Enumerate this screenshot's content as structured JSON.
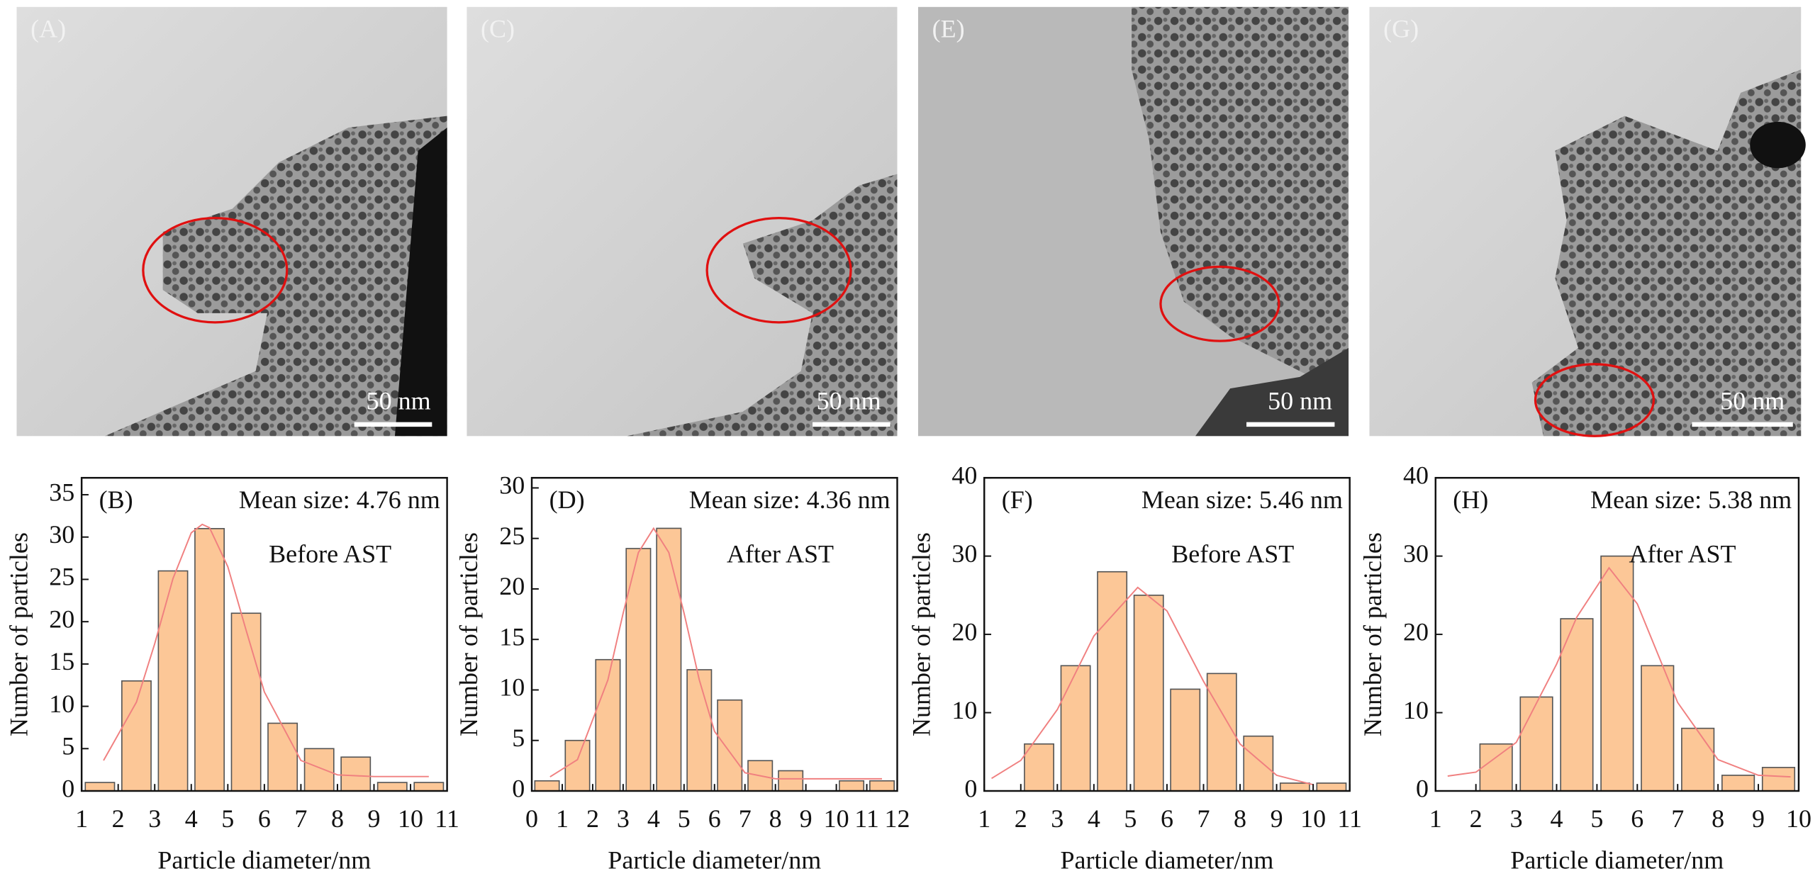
{
  "images": [
    {
      "label": "(A)",
      "scale_bar": "50 nm"
    },
    {
      "label": "(C)",
      "scale_bar": "50 nm"
    },
    {
      "label": "(E)",
      "scale_bar": "50 nm"
    },
    {
      "label": "(G)",
      "scale_bar": "50 nm"
    }
  ],
  "chart_data": [
    {
      "type": "histogram",
      "panel_label": "(B)",
      "annotation": "Mean size: 4.76 nm",
      "note": "Before AST",
      "x_label": "Particle diameter/nm",
      "y_label": "Number of particles",
      "color": "#fcc797",
      "edge_color": "#555555",
      "bins": [
        1,
        2,
        3,
        4,
        5,
        6,
        7,
        8,
        9,
        10,
        11
      ],
      "values": [
        1,
        13,
        26,
        31,
        21,
        8,
        5,
        4,
        1,
        1
      ],
      "xlim": [
        1,
        11
      ],
      "xticks": [
        1,
        2,
        3,
        4,
        5,
        6,
        7,
        8,
        9,
        10,
        11
      ],
      "ylim": [
        0,
        37
      ],
      "yticks": [
        0,
        5,
        10,
        15,
        20,
        25,
        30,
        35
      ],
      "fit": {
        "color": "#f08080",
        "x": [
          1.6,
          2.5,
          3,
          3.5,
          4,
          4.3,
          4.5,
          5,
          5.5,
          6,
          7,
          8,
          9,
          10.5
        ],
        "values": [
          3.6,
          10.5,
          17.4,
          25.1,
          30.5,
          31.5,
          31.1,
          26.5,
          19.0,
          11.7,
          3.6,
          1.9,
          1.7,
          1.7
        ]
      }
    },
    {
      "type": "histogram",
      "panel_label": "(D)",
      "annotation": "Mean size: 4.36 nm",
      "note": "After AST",
      "x_label": "Particle diameter/nm",
      "y_label": "Number of particles",
      "color": "#fcc797",
      "edge_color": "#555555",
      "bins": [
        0,
        1,
        2,
        3,
        4,
        5,
        6,
        7,
        8,
        9,
        10,
        11,
        12
      ],
      "values": [
        1,
        5,
        13,
        24,
        26,
        12,
        9,
        3,
        2,
        0,
        1,
        1
      ],
      "xlim": [
        0,
        12
      ],
      "xticks": [
        0,
        1,
        2,
        3,
        4,
        5,
        6,
        7,
        8,
        9,
        10,
        11,
        12
      ],
      "ylim": [
        0,
        31
      ],
      "yticks": [
        0,
        5,
        10,
        15,
        20,
        25,
        30
      ],
      "fit": {
        "color": "#f08080",
        "x": [
          0.6,
          1.5,
          2.5,
          3,
          3.5,
          4,
          4.5,
          5,
          5.5,
          6,
          7,
          8,
          11.5
        ],
        "values": [
          1.4,
          3.1,
          11.0,
          17.6,
          23.6,
          26.0,
          23.6,
          17.6,
          11.0,
          5.9,
          1.8,
          1.2,
          1.2
        ]
      }
    },
    {
      "type": "histogram",
      "panel_label": "(F)",
      "annotation": "Mean size: 5.46 nm",
      "note": "Before AST",
      "x_label": "Particle diameter/nm",
      "y_label": "Number of particles",
      "color": "#fcc797",
      "edge_color": "#555555",
      "bins": [
        2,
        3,
        4,
        5,
        6,
        7,
        8,
        9,
        10,
        11
      ],
      "values": [
        6,
        16,
        28,
        25,
        13,
        15,
        7,
        1,
        1
      ],
      "xlim": [
        1,
        11
      ],
      "xticks": [
        1,
        2,
        3,
        4,
        5,
        6,
        7,
        8,
        9,
        10,
        11
      ],
      "ylim": [
        0,
        40
      ],
      "yticks": [
        0,
        10,
        20,
        30,
        40
      ],
      "fit": {
        "color": "#f08080",
        "x": [
          1.2,
          2,
          3,
          4,
          5.2,
          6,
          7,
          8,
          9,
          10
        ],
        "values": [
          1.6,
          3.9,
          10.4,
          19.8,
          26.0,
          23.0,
          14.0,
          6.0,
          2.0,
          0.8
        ]
      }
    },
    {
      "type": "histogram",
      "panel_label": "(H)",
      "annotation": "Mean size: 5.38 nm",
      "note": "After AST",
      "x_label": "Particle diameter/nm",
      "y_label": "Number of particles",
      "color": "#fcc797",
      "edge_color": "#555555",
      "bins": [
        2,
        3,
        4,
        5,
        6,
        7,
        8,
        9,
        10
      ],
      "values": [
        6,
        12,
        22,
        30,
        16,
        8,
        2,
        3
      ],
      "xlim": [
        1,
        10
      ],
      "xticks": [
        1,
        2,
        3,
        4,
        5,
        6,
        7,
        8,
        9,
        10
      ],
      "ylim": [
        0,
        40
      ],
      "yticks": [
        0,
        10,
        20,
        30,
        40
      ],
      "fit": {
        "color": "#f08080",
        "x": [
          1.3,
          2,
          3,
          4,
          4.5,
          5.3,
          6,
          7,
          8,
          9,
          9.8
        ],
        "values": [
          1.9,
          2.4,
          6.2,
          16.2,
          22.2,
          28.5,
          23.9,
          11.3,
          4.0,
          2.0,
          1.8
        ]
      }
    }
  ]
}
